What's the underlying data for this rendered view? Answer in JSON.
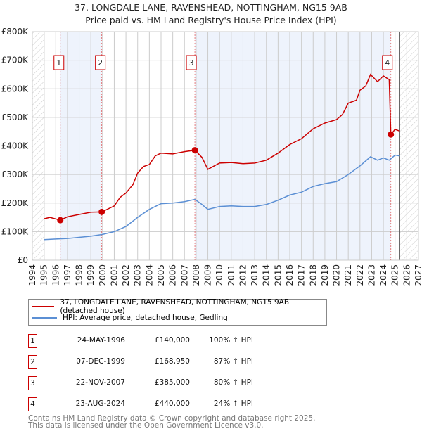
{
  "chart_data": {
    "type": "line",
    "title": "37, LONGDALE LANE, RAVENSHEAD, NOTTINGHAM, NG15 9AB",
    "subtitle": "Price paid vs. HM Land Registry's House Price Index (HPI)",
    "xlim": [
      1994,
      2027
    ],
    "ylim": [
      0,
      800000
    ],
    "x_ticks": [
      "1994",
      "1995",
      "1996",
      "1997",
      "1998",
      "1999",
      "2000",
      "2001",
      "2002",
      "2003",
      "2004",
      "2005",
      "2006",
      "2007",
      "2008",
      "2009",
      "2010",
      "2011",
      "2012",
      "2013",
      "2014",
      "2015",
      "2016",
      "2017",
      "2018",
      "2019",
      "2020",
      "2021",
      "2022",
      "2023",
      "2024",
      "2025",
      "2026",
      "2027"
    ],
    "y_ticks": [
      {
        "v": 0,
        "l": "£0"
      },
      {
        "v": 100000,
        "l": "£100K"
      },
      {
        "v": 200000,
        "l": "£200K"
      },
      {
        "v": 300000,
        "l": "£300K"
      },
      {
        "v": 400000,
        "l": "£400K"
      },
      {
        "v": 500000,
        "l": "£500K"
      },
      {
        "v": 600000,
        "l": "£600K"
      },
      {
        "v": 700000,
        "l": "£700K"
      },
      {
        "v": 800000,
        "l": "£800K"
      }
    ],
    "data_range": [
      1995,
      2025.4
    ],
    "series": [
      {
        "name": "37, LONGDALE LANE, RAVENSHEAD, NOTTINGHAM, NG15 9AB (detached house)",
        "color": "#cc0000",
        "x": [
          1995,
          1995.5,
          1996.4,
          1997,
          1998,
          1999,
          1999.93,
          2001,
          2001.5,
          2002,
          2002.6,
          2003,
          2003.5,
          2004,
          2004.5,
          2005,
          2006,
          2007,
          2007.89,
          2008.5,
          2009,
          2010,
          2011,
          2012,
          2013,
          2014,
          2015,
          2016,
          2017,
          2018,
          2019,
          2020,
          2020.5,
          2021,
          2021.7,
          2022,
          2022.5,
          2022.9,
          2023.5,
          2024,
          2024.5,
          2024.64,
          2025,
          2025.4
        ],
        "y": [
          145000,
          150000,
          140000,
          152000,
          160000,
          168000,
          168950,
          190000,
          220000,
          235000,
          265000,
          305000,
          328000,
          335000,
          365000,
          375000,
          372000,
          380000,
          385000,
          360000,
          318000,
          340000,
          342000,
          338000,
          340000,
          350000,
          375000,
          405000,
          425000,
          460000,
          480000,
          492000,
          510000,
          550000,
          560000,
          595000,
          610000,
          650000,
          625000,
          645000,
          632000,
          440000,
          458000,
          452000
        ]
      },
      {
        "name": "HPI: Average price, detached house, Gedling",
        "color": "#5b8fd4",
        "x": [
          1995,
          1996,
          1997,
          1998,
          1999,
          2000,
          2001,
          2002,
          2003,
          2004,
          2005,
          2006,
          2007,
          2007.9,
          2008.5,
          2009,
          2010,
          2011,
          2012,
          2013,
          2014,
          2015,
          2016,
          2017,
          2018,
          2019,
          2020,
          2021,
          2022,
          2022.9,
          2023.5,
          2024,
          2024.5,
          2025,
          2025.4
        ],
        "y": [
          72000,
          74000,
          76000,
          80000,
          84000,
          90000,
          100000,
          118000,
          150000,
          178000,
          198000,
          200000,
          205000,
          213000,
          195000,
          178000,
          188000,
          190000,
          188000,
          188000,
          195000,
          210000,
          228000,
          238000,
          258000,
          268000,
          275000,
          300000,
          330000,
          362000,
          350000,
          358000,
          350000,
          368000,
          365000
        ]
      }
    ],
    "sales": [
      {
        "n": "1",
        "x": 1996.39,
        "y": 140000,
        "date": "24-MAY-1996",
        "price": "£140,000",
        "hpi": "100% ↑ HPI"
      },
      {
        "n": "2",
        "x": 1999.93,
        "y": 168950,
        "date": "07-DEC-1999",
        "price": "£168,950",
        "hpi": "87% ↑ HPI"
      },
      {
        "n": "3",
        "x": 2007.89,
        "y": 385000,
        "date": "22-NOV-2007",
        "price": "£385,000",
        "hpi": "80% ↑ HPI"
      },
      {
        "n": "4",
        "x": 2024.64,
        "y": 440000,
        "date": "23-AUG-2024",
        "price": "£440,000",
        "hpi": "24% ↑ HPI"
      }
    ]
  },
  "footer": {
    "line1": "Contains HM Land Registry data © Crown copyright and database right 2025.",
    "line2": "This data is licensed under the Open Government Licence v3.0."
  }
}
